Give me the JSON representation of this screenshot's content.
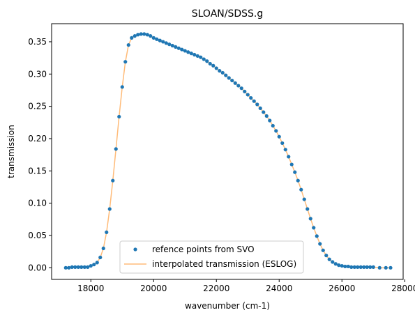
{
  "chart_data": {
    "type": "line",
    "title": "SLOAN/SDSS.g",
    "xlabel": "wavenumber (cm-1)",
    "ylabel": "transmission",
    "xlim": [
      16750,
      27950
    ],
    "ylim": [
      -0.018,
      0.378
    ],
    "xticks": [
      18000,
      20000,
      22000,
      24000,
      26000,
      28000
    ],
    "xtick_labels": [
      "18000",
      "20000",
      "22000",
      "24000",
      "26000",
      "28000"
    ],
    "yticks": [
      0.0,
      0.05,
      0.1,
      0.15,
      0.2,
      0.25,
      0.3,
      0.35
    ],
    "ytick_labels": [
      "0.00",
      "0.05",
      "0.10",
      "0.15",
      "0.20",
      "0.25",
      "0.30",
      "0.35"
    ],
    "grid": false,
    "legend_position": "bottom-center",
    "series": [
      {
        "name": "refence points from SVO",
        "kind": "scatter",
        "color": "#1f77b4",
        "x": [
          17200,
          17300,
          17400,
          17500,
          17600,
          17700,
          17800,
          17900,
          18000,
          18100,
          18200,
          18300,
          18400,
          18500,
          18600,
          18700,
          18800,
          18900,
          19000,
          19100,
          19200,
          19300,
          19400,
          19500,
          19600,
          19700,
          19800,
          19900,
          20000,
          20100,
          20200,
          20300,
          20400,
          20500,
          20600,
          20700,
          20800,
          20900,
          21000,
          21100,
          21200,
          21300,
          21400,
          21500,
          21600,
          21700,
          21800,
          21900,
          22000,
          22100,
          22200,
          22300,
          22400,
          22500,
          22600,
          22700,
          22800,
          22900,
          23000,
          23100,
          23200,
          23300,
          23400,
          23500,
          23600,
          23700,
          23800,
          23900,
          24000,
          24100,
          24200,
          24300,
          24400,
          24500,
          24600,
          24700,
          24800,
          24900,
          25000,
          25100,
          25200,
          25300,
          25400,
          25500,
          25600,
          25700,
          25800,
          25900,
          26000,
          26100,
          26200,
          26300,
          26400,
          26500,
          26600,
          26700,
          26800,
          26900,
          27000,
          27200,
          27400,
          27550
        ],
        "y": [
          0.0,
          0.0,
          0.001,
          0.001,
          0.001,
          0.001,
          0.001,
          0.001,
          0.003,
          0.005,
          0.008,
          0.016,
          0.03,
          0.055,
          0.091,
          0.135,
          0.184,
          0.234,
          0.28,
          0.319,
          0.345,
          0.356,
          0.359,
          0.361,
          0.362,
          0.362,
          0.361,
          0.359,
          0.356,
          0.354,
          0.352,
          0.35,
          0.348,
          0.346,
          0.344,
          0.342,
          0.34,
          0.338,
          0.336,
          0.334,
          0.332,
          0.33,
          0.328,
          0.326,
          0.323,
          0.32,
          0.316,
          0.313,
          0.309,
          0.305,
          0.302,
          0.298,
          0.294,
          0.29,
          0.286,
          0.282,
          0.278,
          0.273,
          0.268,
          0.263,
          0.258,
          0.253,
          0.247,
          0.241,
          0.235,
          0.228,
          0.22,
          0.212,
          0.203,
          0.193,
          0.183,
          0.172,
          0.16,
          0.148,
          0.135,
          0.121,
          0.106,
          0.091,
          0.076,
          0.062,
          0.049,
          0.037,
          0.027,
          0.019,
          0.013,
          0.009,
          0.006,
          0.004,
          0.003,
          0.002,
          0.002,
          0.001,
          0.001,
          0.001,
          0.001,
          0.001,
          0.001,
          0.001,
          0.001,
          0.0,
          0.0,
          0.0
        ]
      },
      {
        "name": "interpolated transmission (ESLOG)",
        "kind": "line",
        "color": "#ffbb78"
      }
    ]
  }
}
